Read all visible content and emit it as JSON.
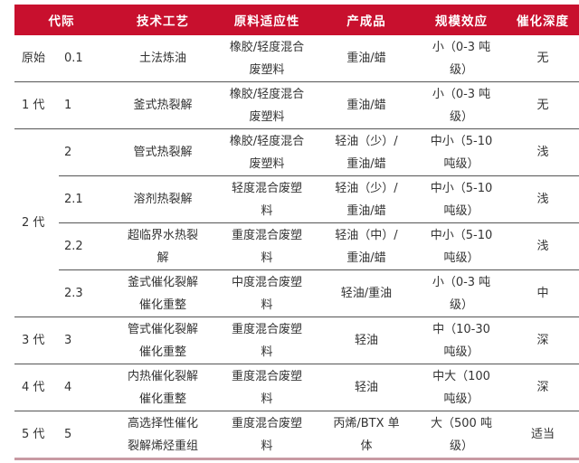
{
  "headers": [
    "代际",
    "技术工艺",
    "原料适应性",
    "产成品",
    "规模效应",
    "催化深度"
  ],
  "accent_color": "#c8102e",
  "rows": [
    {
      "generation": "原始",
      "stage": "0.1",
      "process": [
        "土法炼油"
      ],
      "feedstock": [
        "橡胶/轻度混合",
        "废塑料"
      ],
      "product": [
        "重油/蜡"
      ],
      "scale": [
        "小（0-3 吨",
        "级）"
      ],
      "catalysis": "无"
    },
    {
      "generation": "1 代",
      "stage": "1",
      "process": [
        "釜式热裂解"
      ],
      "feedstock": [
        "橡胶/轻度混合",
        "废塑料"
      ],
      "product": [
        "重油/蜡"
      ],
      "scale": [
        "小（0-3 吨",
        "级）"
      ],
      "catalysis": "无"
    },
    {
      "generation": "2 代",
      "rowspan": 4,
      "stage": "2",
      "process": [
        "管式热裂解"
      ],
      "feedstock": [
        "橡胶/轻度混合",
        "废塑料"
      ],
      "product": [
        "轻油（少）/",
        "重油/蜡"
      ],
      "scale": [
        "中小（5-10",
        "吨级）"
      ],
      "catalysis": "浅"
    },
    {
      "stage": "2.1",
      "process": [
        "溶剂热裂解"
      ],
      "feedstock": [
        "轻度混合废塑",
        "料"
      ],
      "product": [
        "轻油（少）/",
        "重油/蜡"
      ],
      "scale": [
        "中小（5-10",
        "吨级）"
      ],
      "catalysis": "浅"
    },
    {
      "stage": "2.2",
      "process": [
        "超临界水热裂",
        "解"
      ],
      "feedstock": [
        "重度混合废塑",
        "料"
      ],
      "product": [
        "轻油（中）/",
        "重油/蜡"
      ],
      "scale": [
        "中小（5-10",
        "吨级）"
      ],
      "catalysis": "浅"
    },
    {
      "stage": "2.3",
      "process": [
        "釜式催化裂解",
        "催化重整"
      ],
      "feedstock": [
        "中度混合废塑",
        "料"
      ],
      "product": [
        "轻油/重油"
      ],
      "scale": [
        "小（0-3 吨",
        "级）"
      ],
      "catalysis": "中"
    },
    {
      "generation": "3 代",
      "stage": "3",
      "process": [
        "管式催化裂解",
        "催化重整"
      ],
      "feedstock": [
        "重度混合废塑",
        "料"
      ],
      "product": [
        "轻油"
      ],
      "scale": [
        "中（10-30",
        "吨级）"
      ],
      "catalysis": "深"
    },
    {
      "generation": "4 代",
      "stage": "4",
      "process": [
        "内热催化裂解",
        "催化重整"
      ],
      "feedstock": [
        "重度混合废塑",
        "料"
      ],
      "product": [
        "轻油"
      ],
      "scale": [
        "中大（100",
        "吨级）"
      ],
      "catalysis": "深"
    },
    {
      "generation": "5 代",
      "stage": "5",
      "process": [
        "高选择性催化",
        "裂解烯烃重组"
      ],
      "feedstock": [
        "重度混合废塑",
        "料"
      ],
      "product": [
        "丙烯/BTX 单",
        "体"
      ],
      "scale": [
        "大（500 吨",
        "级）"
      ],
      "catalysis": "适当"
    }
  ]
}
